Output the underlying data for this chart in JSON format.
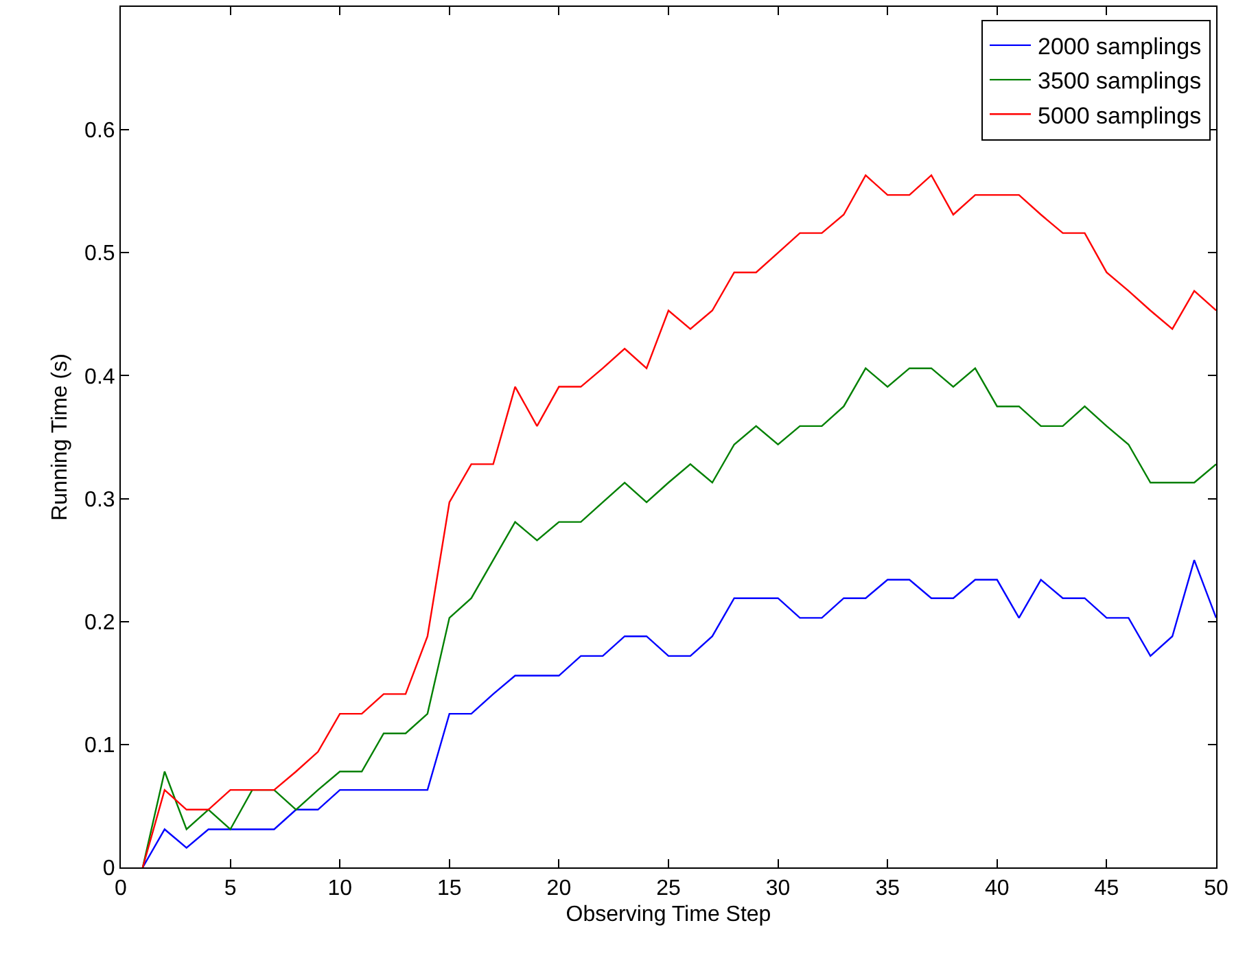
{
  "chart_data": {
    "type": "line",
    "xlabel": "Observing Time Step",
    "ylabel": "Running Time (s)",
    "x": [
      1,
      2,
      3,
      4,
      5,
      6,
      7,
      8,
      9,
      10,
      11,
      12,
      13,
      14,
      15,
      16,
      17,
      18,
      19,
      20,
      21,
      22,
      23,
      24,
      25,
      26,
      27,
      28,
      29,
      30,
      31,
      32,
      33,
      34,
      35,
      36,
      37,
      38,
      39,
      40,
      41,
      42,
      43,
      44,
      45,
      46,
      47,
      48,
      49,
      50
    ],
    "series": [
      {
        "name": "2000 samplings",
        "color": "#0000ff",
        "values": [
          0,
          0.031,
          0.016,
          0.031,
          0.031,
          0.031,
          0.031,
          0.047,
          0.047,
          0.063,
          0.063,
          0.063,
          0.063,
          0.063,
          0.125,
          0.125,
          0.141,
          0.156,
          0.156,
          0.156,
          0.172,
          0.172,
          0.188,
          0.188,
          0.172,
          0.172,
          0.188,
          0.219,
          0.219,
          0.219,
          0.203,
          0.203,
          0.219,
          0.219,
          0.234,
          0.234,
          0.219,
          0.219,
          0.234,
          0.234,
          0.203,
          0.234,
          0.219,
          0.219,
          0.203,
          0.203,
          0.172,
          0.188,
          0.25,
          0.203
        ]
      },
      {
        "name": "3500 samplings",
        "color": "#008000",
        "values": [
          0,
          0.078,
          0.031,
          0.047,
          0.031,
          0.063,
          0.063,
          0.047,
          0.063,
          0.078,
          0.078,
          0.109,
          0.109,
          0.125,
          0.203,
          0.219,
          0.25,
          0.281,
          0.266,
          0.281,
          0.281,
          0.297,
          0.313,
          0.297,
          0.313,
          0.328,
          0.313,
          0.344,
          0.359,
          0.344,
          0.359,
          0.359,
          0.375,
          0.406,
          0.391,
          0.406,
          0.406,
          0.391,
          0.406,
          0.375,
          0.375,
          0.359,
          0.359,
          0.375,
          0.359,
          0.344,
          0.313,
          0.313,
          0.313,
          0.328
        ]
      },
      {
        "name": "5000 samplings",
        "color": "#ff0000",
        "values": [
          0,
          0.063,
          0.047,
          0.047,
          0.063,
          0.063,
          0.063,
          0.078,
          0.094,
          0.125,
          0.125,
          0.141,
          0.141,
          0.188,
          0.297,
          0.328,
          0.328,
          0.391,
          0.359,
          0.391,
          0.391,
          0.406,
          0.422,
          0.406,
          0.453,
          0.438,
          0.453,
          0.484,
          0.484,
          0.5,
          0.516,
          0.516,
          0.531,
          0.563,
          0.547,
          0.547,
          0.563,
          0.531,
          0.547,
          0.547,
          0.547,
          0.531,
          0.516,
          0.516,
          0.484,
          0.469,
          0.453,
          0.438,
          0.469,
          0.453
        ]
      }
    ],
    "xlim": [
      0,
      50
    ],
    "xticks": [
      0,
      5,
      10,
      15,
      20,
      25,
      30,
      35,
      40,
      45,
      50
    ],
    "ylim": [
      0,
      0.7
    ],
    "yticks": [
      0,
      0.1,
      0.2,
      0.3,
      0.4,
      0.5,
      0.6
    ],
    "grid": false,
    "legend": "top right",
    "marker": "none",
    "line_style": "solid"
  }
}
